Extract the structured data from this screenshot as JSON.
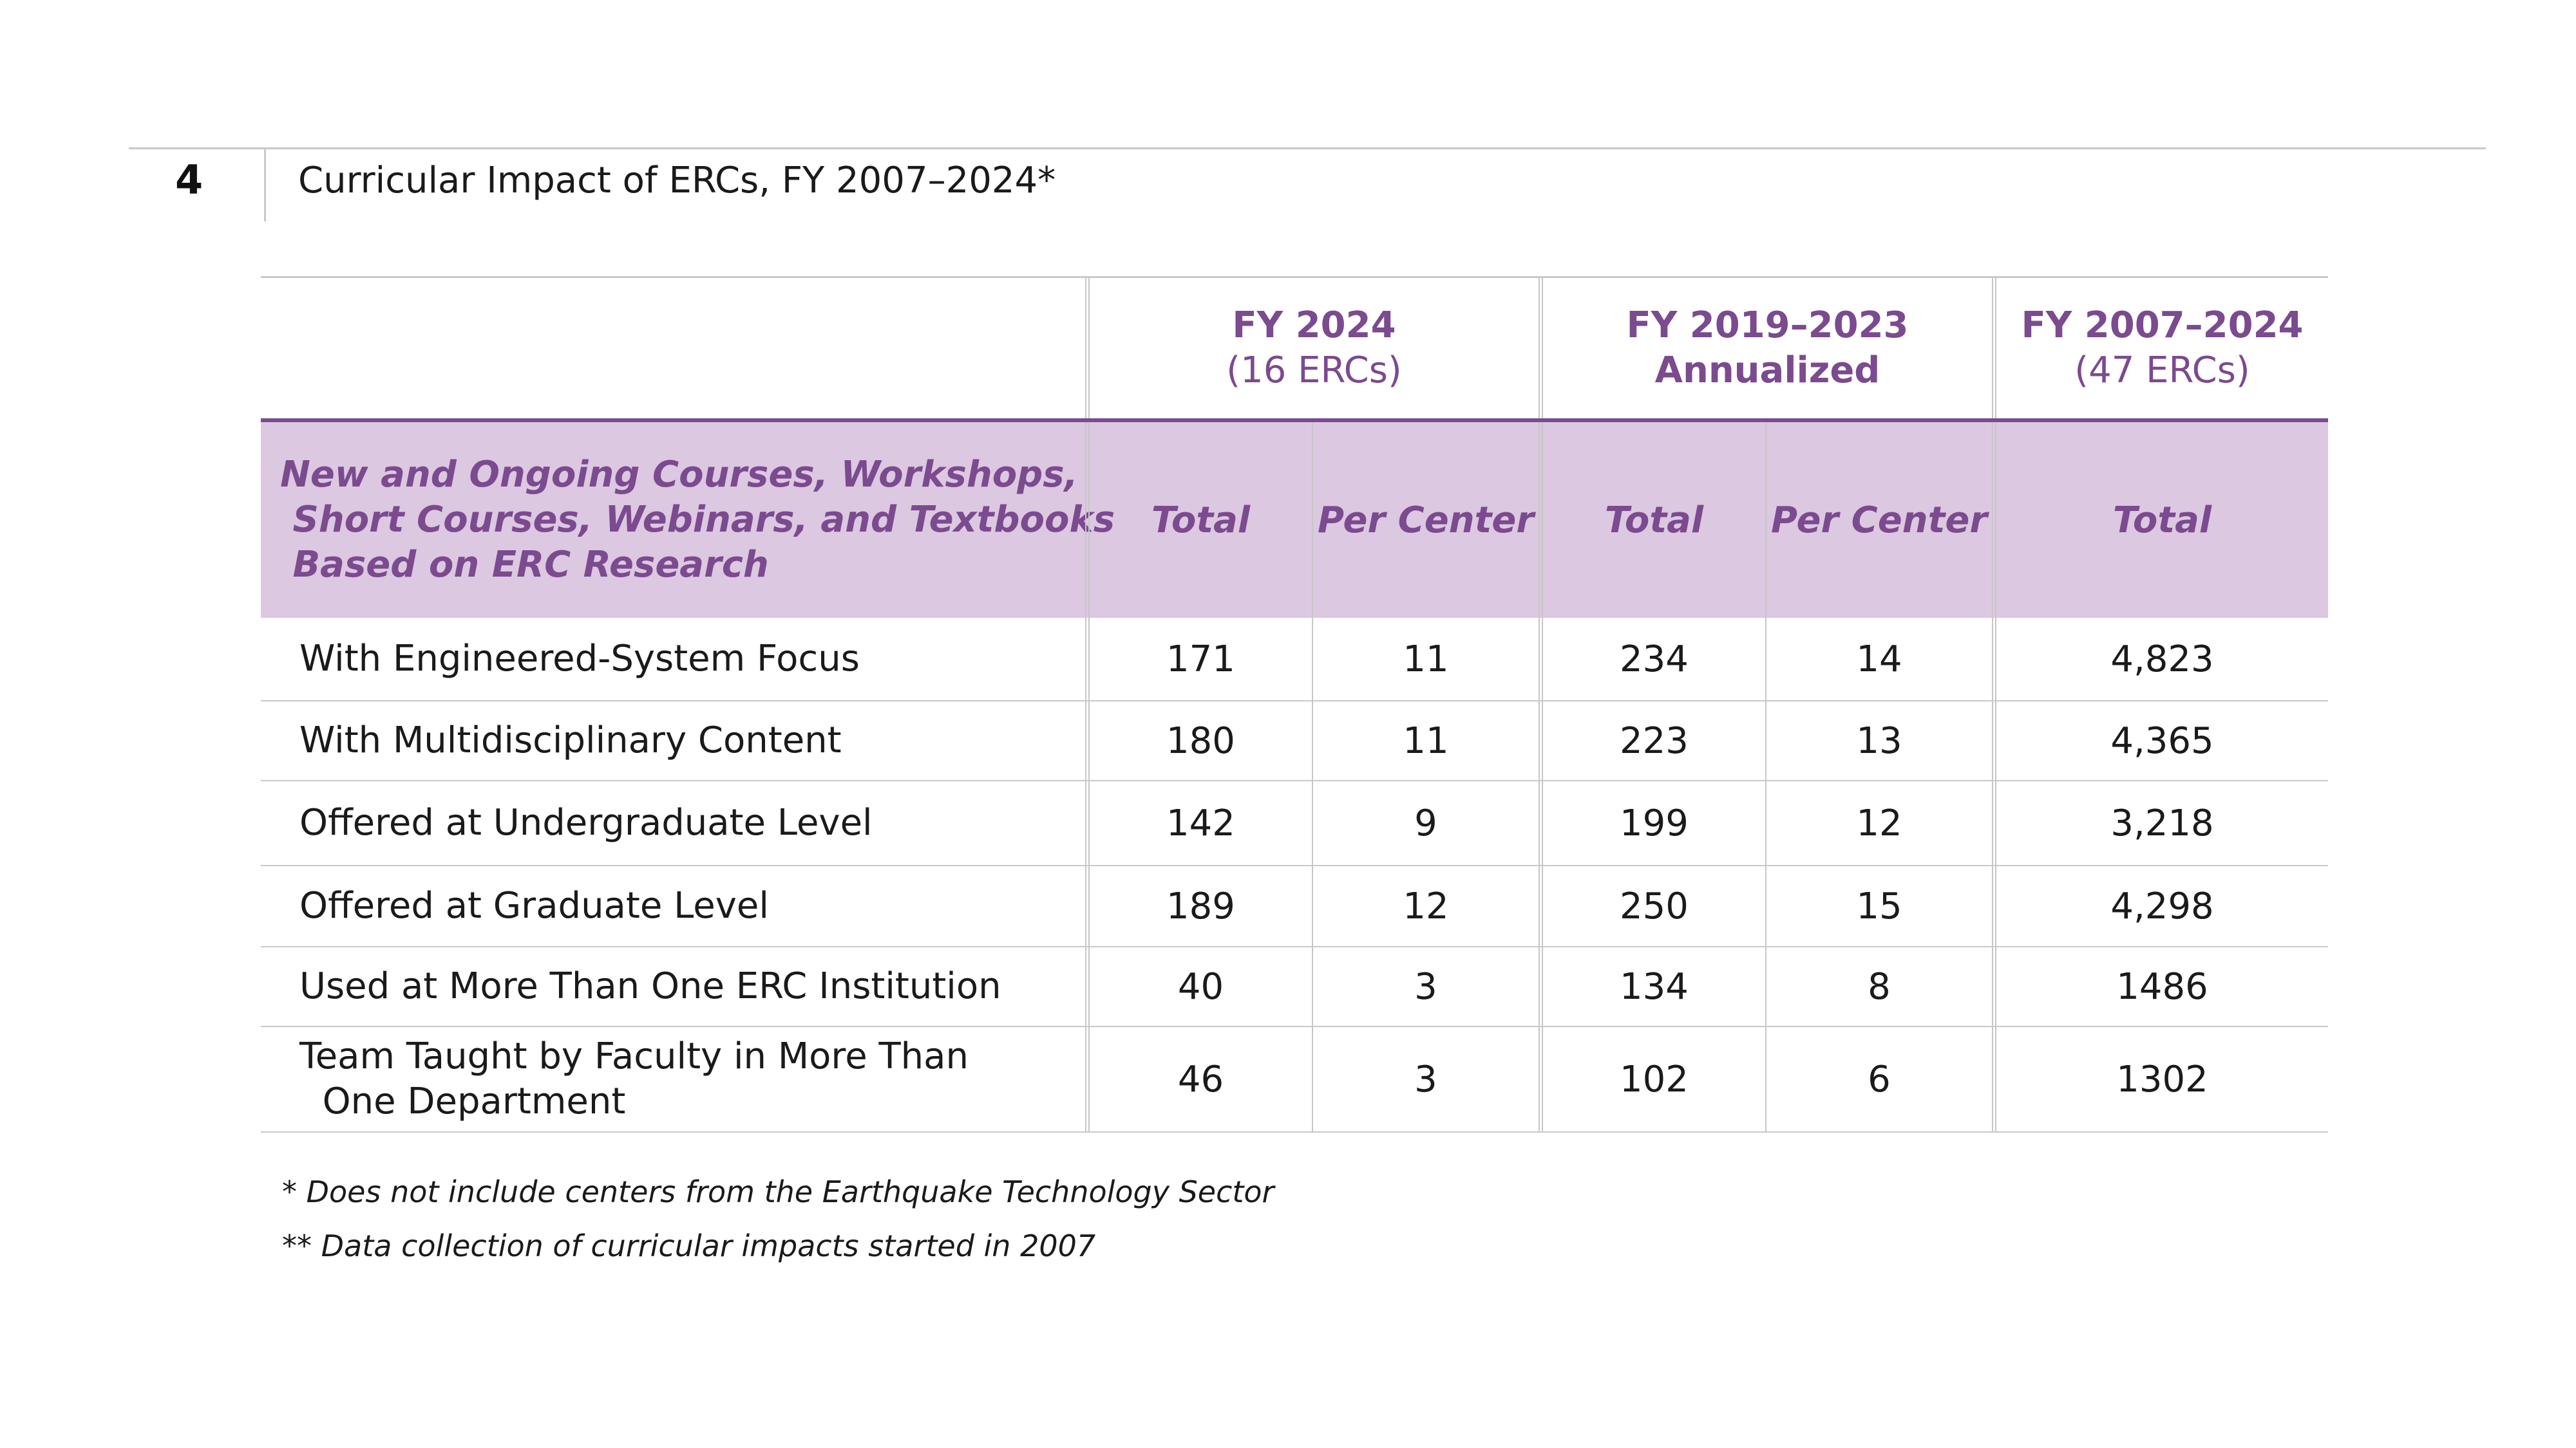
{
  "page": {
    "number": "4",
    "title": "Curricular Impact of ERCs, FY 2007–2024*"
  },
  "table": {
    "groups": [
      {
        "line1": "FY 2024",
        "line2": "(16 ERCs)"
      },
      {
        "line1": "FY 2019–2023",
        "line2": "Annualized"
      },
      {
        "line1": "FY 2007–2024",
        "line2": "(47 ERCs)"
      }
    ],
    "row_header_label": "New and Ongoing Courses, Workshops,\n Short Courses, Webinars, and Textbooks\n Based on ERC Research",
    "subheaders": [
      "Total",
      "Per Center",
      "Total",
      "Per Center",
      "Total"
    ],
    "rows": [
      {
        "label": "With Engineered-System Focus",
        "values": [
          "171",
          "11",
          "234",
          "14",
          "4,823"
        ]
      },
      {
        "label": "With Multidisciplinary Content",
        "values": [
          "180",
          "11",
          "223",
          "13",
          "4,365"
        ]
      },
      {
        "label": "Offered at Undergraduate Level",
        "values": [
          "142",
          "9",
          "199",
          "12",
          "3,218"
        ]
      },
      {
        "label": "Offered at Graduate Level",
        "values": [
          "189",
          "12",
          "250",
          "15",
          "4,298"
        ]
      },
      {
        "label": "Used at More Than One ERC Institution",
        "values": [
          "40",
          "3",
          "134",
          "8",
          "1486"
        ]
      },
      {
        "label": "Team Taught by Faculty in More Than\n  One Department",
        "values": [
          "46",
          "3",
          "102",
          "6",
          "1302"
        ]
      }
    ]
  },
  "footnotes": [
    "* Does not include centers from the Earthquake Technology Sector",
    "** Data collection of curricular impacts started in 2007"
  ],
  "colors": {
    "accent": "#7b4a8f",
    "header_fill": "#dcc8e0",
    "rule": "#c9c9c9"
  }
}
